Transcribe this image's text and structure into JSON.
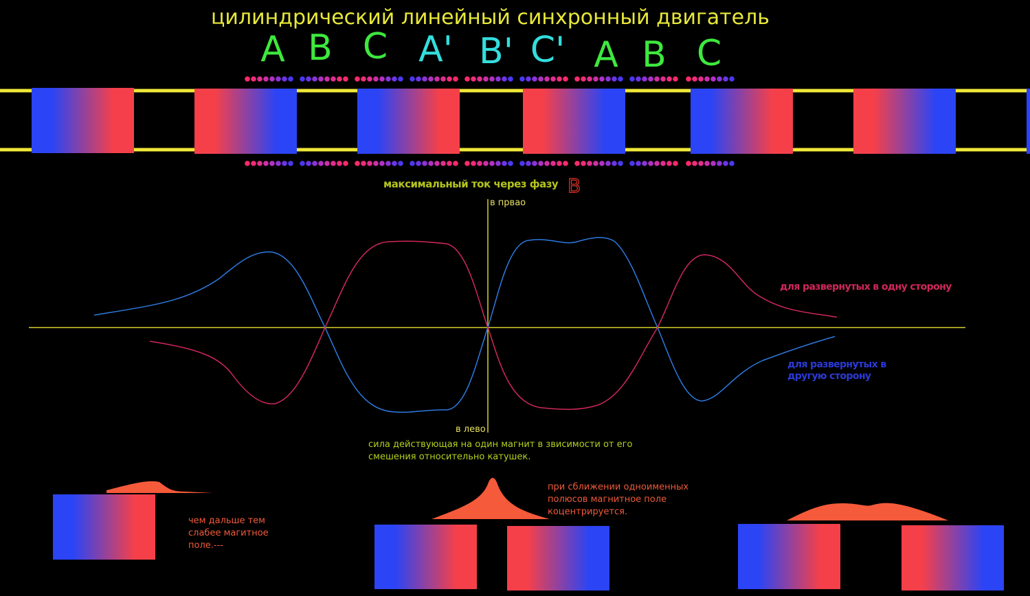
{
  "header": {
    "title": "цилиндрический линейный синхронный двигатель"
  },
  "phases": [
    "A",
    "B",
    "C",
    "A'",
    "B'",
    "C'",
    "A",
    "B",
    "C"
  ],
  "graph": {
    "heading": "максимальный ток через фазу",
    "heading_phase": "B",
    "axis_top": "в првао",
    "axis_bottom": "в лево",
    "legend_same": "для развернутых в одну сторону",
    "legend_opposite": "для развернутых в другую сторону",
    "caption": "сила действующая на один магнит в звисимости от его смешения относительно катушек."
  },
  "notes": {
    "far": "чем дальше тем слабее магитное поле.---",
    "near": "при сближении одноименных полюсов магнитное поле коцентрируется."
  }
}
